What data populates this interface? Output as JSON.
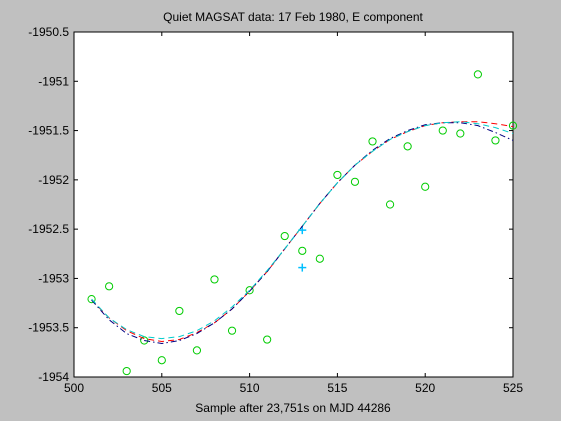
{
  "chart_data": {
    "type": "scatter",
    "title": "Quiet MAGSAT data: 17 Feb 1980, E component",
    "xlabel": "Sample after 23,751s on MJD 44286",
    "ylabel": "",
    "xlim": [
      500,
      525
    ],
    "ylim": [
      -1954,
      -1950.5
    ],
    "xticks": [
      500,
      505,
      510,
      515,
      520,
      525
    ],
    "yticks": [
      -1950.5,
      -1951,
      -1951.5,
      -1952,
      -1952.5,
      -1953,
      -1953.5,
      -1954
    ],
    "xtick_labels": [
      "500",
      "505",
      "510",
      "515",
      "520",
      "525"
    ],
    "ytick_labels": [
      "-1950.5",
      "-1951",
      "-1951.5",
      "-1952",
      "-1952.5",
      "-1953",
      "-1953.5",
      "-1954"
    ],
    "grid": false,
    "series": [
      {
        "kind": "markers-circle",
        "color": "#00cc00",
        "x": [
          501,
          502,
          503,
          504,
          505,
          506,
          507,
          508,
          509,
          510,
          511,
          512,
          513,
          514,
          515,
          516,
          517,
          518,
          519,
          520,
          521,
          522,
          523,
          524,
          525
        ],
        "y": [
          -1953.21,
          -1953.08,
          -1953.94,
          -1953.63,
          -1953.83,
          -1953.33,
          -1953.73,
          -1953.01,
          -1953.53,
          -1953.12,
          -1953.62,
          -1952.57,
          -1952.72,
          -1952.8,
          -1951.95,
          -1952.02,
          -1951.61,
          -1952.25,
          -1951.66,
          -1952.07,
          -1951.5,
          -1951.53,
          -1950.93,
          -1951.6,
          -1951.45
        ]
      },
      {
        "kind": "markers-plus",
        "color": "#00bfff",
        "x": [
          513,
          513
        ],
        "y": [
          -1952.51,
          -1952.89
        ]
      },
      {
        "kind": "line-dashed",
        "color": "#ff0000",
        "x": [
          501,
          502,
          503,
          504,
          505,
          506,
          507,
          508,
          509,
          510,
          511,
          512,
          513,
          514,
          515,
          516,
          517,
          518,
          519,
          520,
          521,
          522,
          523,
          524,
          525
        ],
        "y": [
          -1953.22,
          -1953.4,
          -1953.53,
          -1953.61,
          -1953.64,
          -1953.62,
          -1953.55,
          -1953.45,
          -1953.31,
          -1953.13,
          -1952.93,
          -1952.7,
          -1952.47,
          -1952.24,
          -1952.03,
          -1951.85,
          -1951.71,
          -1951.59,
          -1951.51,
          -1951.45,
          -1951.42,
          -1951.41,
          -1951.41,
          -1951.43,
          -1951.46
        ]
      },
      {
        "kind": "line-dashdot",
        "color": "#000080",
        "x": [
          501,
          502,
          503,
          504,
          505,
          506,
          507,
          508,
          509,
          510,
          511,
          512,
          513,
          514,
          515,
          516,
          517,
          518,
          519,
          520,
          521,
          522,
          523,
          524,
          525
        ],
        "y": [
          -1953.22,
          -1953.42,
          -1953.56,
          -1953.63,
          -1953.66,
          -1953.63,
          -1953.56,
          -1953.45,
          -1953.31,
          -1953.13,
          -1952.93,
          -1952.7,
          -1952.47,
          -1952.24,
          -1952.03,
          -1951.85,
          -1951.7,
          -1951.58,
          -1951.5,
          -1951.44,
          -1951.42,
          -1951.42,
          -1951.45,
          -1951.52,
          -1951.6
        ]
      },
      {
        "kind": "line-dashed",
        "color": "#00cccc",
        "x": [
          501,
          502,
          503,
          504,
          505,
          506,
          507,
          508,
          509,
          510,
          511,
          512,
          513,
          514,
          515,
          516,
          517,
          518,
          519,
          520,
          521,
          522,
          523,
          524,
          525
        ],
        "y": [
          -1953.21,
          -1953.4,
          -1953.52,
          -1953.59,
          -1953.61,
          -1953.59,
          -1953.53,
          -1953.43,
          -1953.29,
          -1953.12,
          -1952.92,
          -1952.7,
          -1952.47,
          -1952.24,
          -1952.03,
          -1951.85,
          -1951.71,
          -1951.59,
          -1951.51,
          -1951.45,
          -1951.42,
          -1951.41,
          -1951.43,
          -1951.47,
          -1951.53
        ]
      }
    ]
  }
}
